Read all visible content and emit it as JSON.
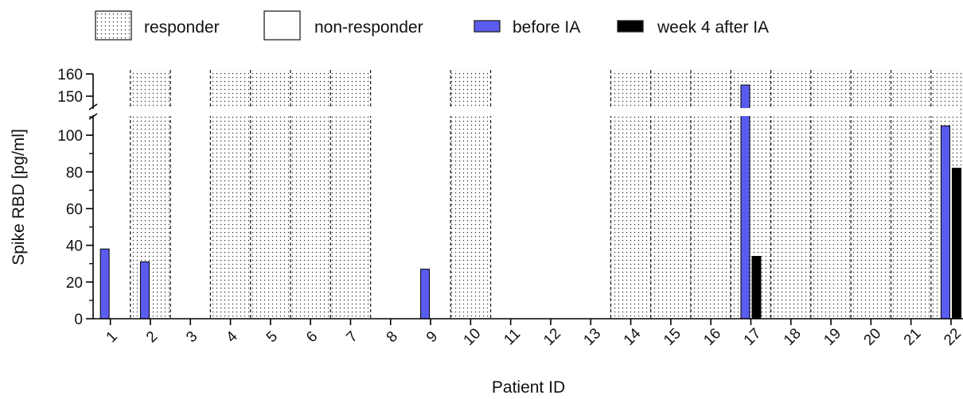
{
  "chart_data": {
    "type": "bar",
    "xlabel": "Patient ID",
    "ylabel": "Spike RBD [pg/ml]",
    "categories": [
      "1",
      "2",
      "3",
      "4",
      "5",
      "6",
      "7",
      "8",
      "9",
      "10",
      "11",
      "12",
      "13",
      "14",
      "15",
      "16",
      "17",
      "18",
      "19",
      "20",
      "21",
      "22"
    ],
    "series": [
      {
        "name": "before IA",
        "color": "#5b5bf0",
        "values": [
          38,
          31,
          null,
          null,
          null,
          null,
          null,
          null,
          27,
          null,
          null,
          null,
          null,
          null,
          null,
          null,
          155,
          null,
          null,
          null,
          null,
          105
        ]
      },
      {
        "name": "week 4 after IA",
        "color": "#000000",
        "values": [
          null,
          null,
          null,
          null,
          null,
          null,
          null,
          null,
          null,
          null,
          null,
          null,
          null,
          null,
          null,
          null,
          34,
          null,
          null,
          null,
          null,
          82
        ]
      }
    ],
    "responder": [
      false,
      true,
      false,
      true,
      true,
      true,
      true,
      false,
      false,
      true,
      false,
      false,
      false,
      true,
      true,
      true,
      true,
      true,
      true,
      true,
      true,
      true
    ],
    "legend": {
      "placement": "top",
      "items": [
        {
          "label": "responder",
          "pattern": "dotted"
        },
        {
          "label": "non-responder",
          "pattern": "empty"
        },
        {
          "label": "before IA",
          "color": "#5b5bf0"
        },
        {
          "label": "week 4 after IA",
          "color": "#000000"
        }
      ]
    },
    "y_axis": {
      "broken": true,
      "lower_range": [
        0,
        110
      ],
      "upper_range": [
        145,
        160
      ],
      "lower_ticks": [
        0,
        20,
        40,
        60,
        80,
        100
      ],
      "upper_ticks": [
        150,
        160
      ]
    },
    "grid": false
  }
}
